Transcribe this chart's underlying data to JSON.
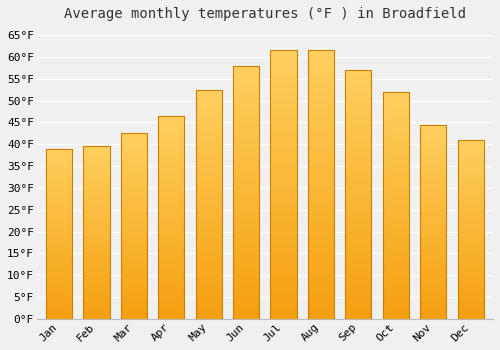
{
  "title": "Average monthly temperatures (°F ) in Broadfield",
  "months": [
    "Jan",
    "Feb",
    "Mar",
    "Apr",
    "May",
    "Jun",
    "Jul",
    "Aug",
    "Sep",
    "Oct",
    "Nov",
    "Dec"
  ],
  "values": [
    39,
    39.5,
    42.5,
    46.5,
    52.5,
    58,
    61.5,
    61.5,
    57,
    52,
    44.5,
    41
  ],
  "bar_color_top": "#FFD060",
  "bar_color_bottom": "#F5A010",
  "bar_edge_color": "#C88000",
  "ylim": [
    0,
    67
  ],
  "yticks": [
    0,
    5,
    10,
    15,
    20,
    25,
    30,
    35,
    40,
    45,
    50,
    55,
    60,
    65
  ],
  "ytick_labels": [
    "0°F",
    "5°F",
    "10°F",
    "15°F",
    "20°F",
    "25°F",
    "30°F",
    "35°F",
    "40°F",
    "45°F",
    "50°F",
    "55°F",
    "60°F",
    "65°F"
  ],
  "bg_color": "#f0f0f0",
  "plot_bg_color": "#f0f0f0",
  "grid_color": "#ffffff",
  "title_fontsize": 10,
  "tick_fontsize": 8,
  "font_family": "monospace",
  "bar_width": 0.7
}
